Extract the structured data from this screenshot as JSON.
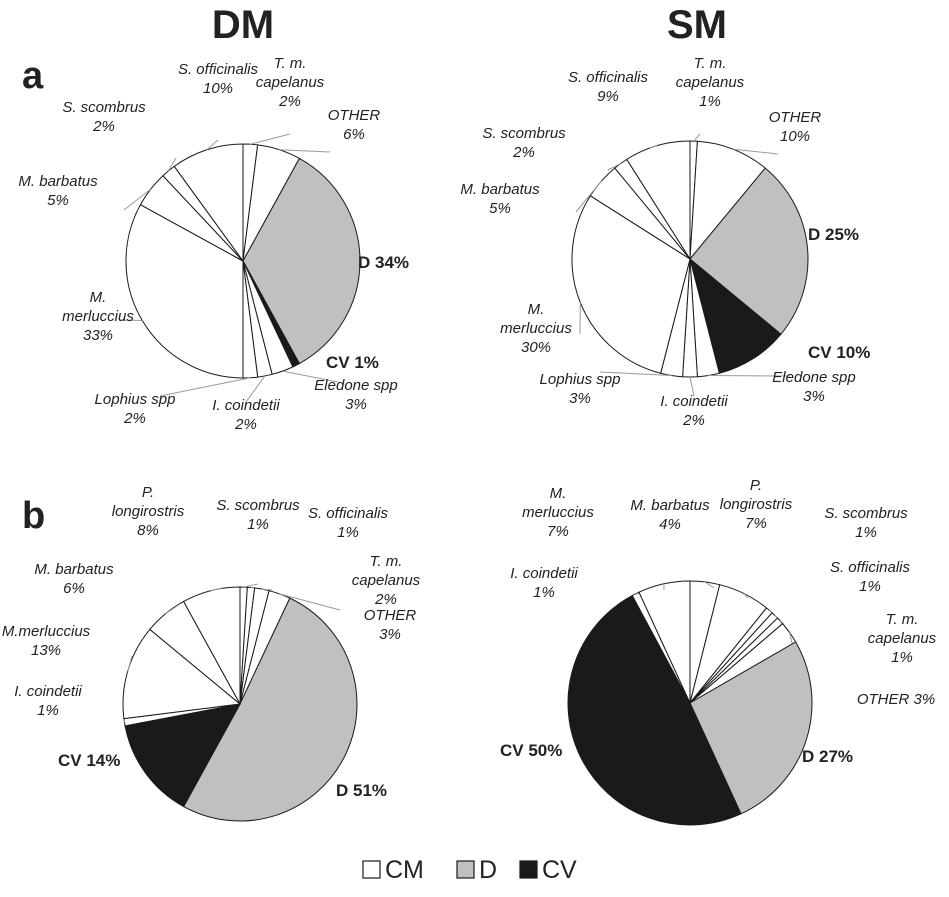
{
  "figure": {
    "column_titles": [
      "DM",
      "SM"
    ],
    "panel_letters": [
      "a",
      "b"
    ]
  },
  "legend": [
    {
      "name": "CM",
      "color": "#ffffff"
    },
    {
      "name": "D",
      "color": "#c0c0c0"
    },
    {
      "name": "CV",
      "color": "#1a1a1a"
    }
  ],
  "chart_data": [
    {
      "type": "pie",
      "panel": "a",
      "column": "DM",
      "start": "top, clockwise",
      "slices": [
        {
          "label": [
            "T. m.",
            "capelanus",
            "2%"
          ],
          "value": 2,
          "group": "CM"
        },
        {
          "label": [
            "OTHER",
            "6%"
          ],
          "value": 6,
          "group": "CM"
        },
        {
          "label": [
            "D 34%"
          ],
          "value": 34,
          "group": "D"
        },
        {
          "label": [
            "CV 1%"
          ],
          "value": 1,
          "group": "CV"
        },
        {
          "label": [
            "Eledone spp",
            "3%"
          ],
          "value": 3,
          "group": "CM"
        },
        {
          "label": [
            "I. coindetii",
            "2%"
          ],
          "value": 2,
          "group": "CM"
        },
        {
          "label": [
            "Lophius spp",
            "2%"
          ],
          "value": 2,
          "group": "CM"
        },
        {
          "label": [
            "M.",
            "merluccius",
            "33%"
          ],
          "value": 33,
          "group": "CM"
        },
        {
          "label": [
            "M. barbatus",
            "5%"
          ],
          "value": 5,
          "group": "CM"
        },
        {
          "label": [
            "S. scombrus",
            "2%"
          ],
          "value": 2,
          "group": "CM"
        },
        {
          "label": [
            "S. officinalis",
            "10%"
          ],
          "value": 10,
          "group": "CM"
        }
      ]
    },
    {
      "type": "pie",
      "panel": "a",
      "column": "SM",
      "start": "top, clockwise",
      "slices": [
        {
          "label": [
            "T. m.",
            "capelanus",
            "1%"
          ],
          "value": 1,
          "group": "CM"
        },
        {
          "label": [
            "OTHER",
            "10%"
          ],
          "value": 10,
          "group": "CM"
        },
        {
          "label": [
            "D 25%"
          ],
          "value": 25,
          "group": "D"
        },
        {
          "label": [
            "CV 10%"
          ],
          "value": 10,
          "group": "CV"
        },
        {
          "label": [
            "Eledone spp",
            "3%"
          ],
          "value": 3,
          "group": "CM"
        },
        {
          "label": [
            "I. coindetii",
            "2%"
          ],
          "value": 2,
          "group": "CM"
        },
        {
          "label": [
            "Lophius spp",
            "3%"
          ],
          "value": 3,
          "group": "CM"
        },
        {
          "label": [
            "M.",
            "merluccius",
            "30%"
          ],
          "value": 30,
          "group": "CM"
        },
        {
          "label": [
            "M. barbatus",
            "5%"
          ],
          "value": 5,
          "group": "CM"
        },
        {
          "label": [
            "S. scombrus",
            "2%"
          ],
          "value": 2,
          "group": "CM"
        },
        {
          "label": [
            "S. officinalis",
            "9%"
          ],
          "value": 9,
          "group": "CM"
        }
      ]
    },
    {
      "type": "pie",
      "panel": "b",
      "column": "DM",
      "start": "top, clockwise",
      "slices": [
        {
          "label": [
            "S. scombrus",
            "1%"
          ],
          "value": 1,
          "group": "CM"
        },
        {
          "label": [
            "S. officinalis",
            "1%"
          ],
          "value": 1,
          "group": "CM"
        },
        {
          "label": [
            "T. m.",
            "capelanus",
            "2%"
          ],
          "value": 2,
          "group": "CM"
        },
        {
          "label": [
            "OTHER",
            "3%"
          ],
          "value": 3,
          "group": "CM"
        },
        {
          "label": [
            "D 51%"
          ],
          "value": 51,
          "group": "D"
        },
        {
          "label": [
            "CV 14%"
          ],
          "value": 14,
          "group": "CV"
        },
        {
          "label": [
            "I. coindetii",
            "1%"
          ],
          "value": 1,
          "group": "CM"
        },
        {
          "label": [
            "M.merluccius",
            "13%"
          ],
          "value": 13,
          "group": "CM"
        },
        {
          "label": [
            "M. barbatus",
            "6%"
          ],
          "value": 6,
          "group": "CM"
        },
        {
          "label": [
            "P.",
            "longirostris",
            "8%"
          ],
          "value": 8,
          "group": "CM"
        }
      ]
    },
    {
      "type": "pie",
      "panel": "b",
      "column": "SM",
      "start": "top, clockwise",
      "slices": [
        {
          "label": [
            "M. barbatus",
            "4%"
          ],
          "value": 4,
          "group": "CM"
        },
        {
          "label": [
            "P.",
            "longirostris",
            "7%"
          ],
          "value": 7,
          "group": "CM"
        },
        {
          "label": [
            "S. scombrus",
            "1%"
          ],
          "value": 1,
          "group": "CM"
        },
        {
          "label": [
            "S. officinalis",
            "1%"
          ],
          "value": 1,
          "group": "CM"
        },
        {
          "label": [
            "T. m.",
            "capelanus",
            "1%"
          ],
          "value": 1,
          "group": "CM"
        },
        {
          "label": [
            "OTHER 3%"
          ],
          "value": 3,
          "group": "CM"
        },
        {
          "label": [
            "D 27%"
          ],
          "value": 27,
          "group": "D"
        },
        {
          "label": [
            "CV 50%"
          ],
          "value": 50,
          "group": "CV"
        },
        {
          "label": [
            "I. coindetii",
            "1%"
          ],
          "value": 1,
          "group": "CM"
        },
        {
          "label": [
            "M.",
            "merluccius",
            "7%"
          ],
          "value": 7,
          "group": "CM"
        }
      ]
    }
  ]
}
